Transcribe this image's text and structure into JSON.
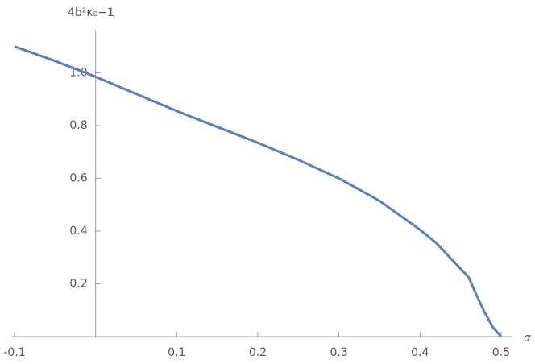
{
  "chart_data": {
    "type": "line",
    "x_label": "α",
    "y_label": "4b²κ₀−1",
    "x": [
      -0.1,
      -0.05,
      0,
      0.05,
      0.1,
      0.15,
      0.2,
      0.25,
      0.3,
      0.35,
      0.4,
      0.42,
      0.44,
      0.46,
      0.47,
      0.48,
      0.49,
      0.5
    ],
    "series": [
      {
        "color": "#5b7fb8",
        "values": [
          1.1,
          1.045,
          0.985,
          0.92,
          0.855,
          0.795,
          0.735,
          0.67,
          0.6,
          0.515,
          0.405,
          0.355,
          0.29,
          0.225,
          0.155,
          0.09,
          0.035,
          0
        ]
      }
    ],
    "xlim": [
      -0.103,
      0.514
    ],
    "ylim": [
      0,
      1.16
    ],
    "xticks": [
      -0.1,
      0.1,
      0.2,
      0.3,
      0.4,
      0.5
    ],
    "yticks": [
      0.2,
      0.4,
      0.6,
      0.8,
      {
        "value": 1,
        "label": "1.0"
      }
    ],
    "grid": false
  }
}
